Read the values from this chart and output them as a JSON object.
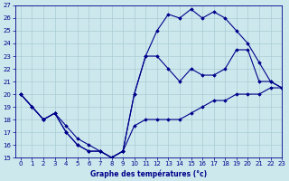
{
  "xlabel": "Graphe des températures (°c)",
  "background_color": "#cce8ec",
  "line_color": "#00008b",
  "grid_color": "#aaccd4",
  "ylim": [
    15,
    27
  ],
  "xlim": [
    -0.5,
    23
  ],
  "yticks": [
    15,
    16,
    17,
    18,
    19,
    20,
    21,
    22,
    23,
    24,
    25,
    26,
    27
  ],
  "xticks": [
    0,
    1,
    2,
    3,
    4,
    5,
    6,
    7,
    8,
    9,
    10,
    11,
    12,
    13,
    14,
    15,
    16,
    17,
    18,
    19,
    20,
    21,
    22,
    23
  ],
  "series": [
    {
      "x": [
        0,
        1,
        2,
        3,
        4,
        5,
        6,
        7,
        8,
        9,
        10,
        11,
        12,
        13,
        14,
        15,
        16,
        17,
        18,
        19,
        20,
        21,
        22,
        23
      ],
      "y": [
        20,
        19,
        18,
        18.5,
        17.5,
        16.5,
        16,
        15.5,
        15,
        15.5,
        17.5,
        18,
        18,
        18,
        18,
        18.5,
        19,
        19.5,
        19.5,
        20,
        20,
        20,
        20.5,
        20.5
      ]
    },
    {
      "x": [
        0,
        1,
        2,
        3,
        4,
        5,
        6,
        7,
        8,
        9,
        10,
        11,
        12,
        13,
        14,
        15,
        16,
        17,
        18,
        19,
        20,
        21,
        22,
        23
      ],
      "y": [
        20,
        19,
        18,
        18.5,
        17,
        16,
        15.5,
        15.5,
        15,
        15.5,
        20,
        23,
        23,
        22,
        21,
        22,
        21.5,
        21.5,
        22,
        23.5,
        23.5,
        21,
        21,
        20.5
      ]
    },
    {
      "x": [
        0,
        1,
        2,
        3,
        4,
        5,
        6,
        7,
        8,
        9,
        10,
        11,
        12,
        13,
        14,
        15,
        16,
        17,
        18,
        19,
        20,
        21,
        22,
        23
      ],
      "y": [
        20,
        19,
        18,
        18.5,
        17,
        16,
        15.5,
        15.5,
        15,
        15.5,
        20,
        23,
        25,
        26.3,
        26,
        26.7,
        26,
        26.5,
        26,
        25,
        24,
        22.5,
        21,
        20.5
      ]
    }
  ]
}
